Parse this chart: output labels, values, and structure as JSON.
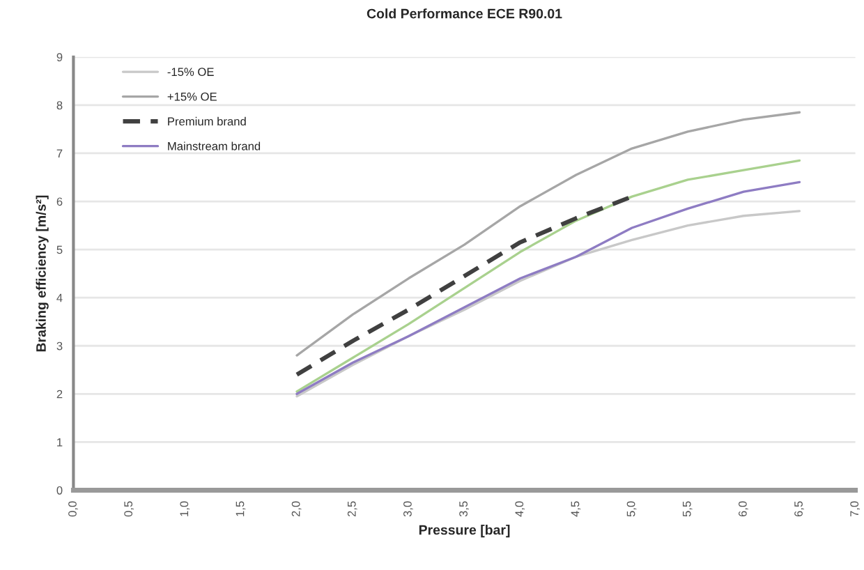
{
  "chart_data": {
    "type": "line",
    "title": "Cold Performance ECE R90.01",
    "xlabel": "Pressure [bar]",
    "ylabel": "Braking efficiency [m/s²]",
    "x": [
      2.0,
      2.5,
      3.0,
      3.5,
      4.0,
      4.5,
      5.0,
      5.5,
      6.0,
      6.5
    ],
    "series": [
      {
        "name": "-15% OE",
        "color": "#c8c8c8",
        "values": [
          1.95,
          2.6,
          3.2,
          3.75,
          4.35,
          4.85,
          5.2,
          5.5,
          5.7,
          5.8
        ]
      },
      {
        "name": "+15% OE",
        "color": "#a6a6a6",
        "values": [
          2.8,
          3.65,
          4.4,
          5.1,
          5.9,
          6.55,
          7.1,
          7.45,
          7.7,
          7.85
        ]
      },
      {
        "name": "Premium brand",
        "color": "#404040",
        "line_style": "dashed",
        "values": [
          2.4,
          3.1,
          3.75,
          4.45,
          5.15,
          5.65,
          6.1,
          null,
          null,
          null
        ]
      },
      {
        "color": "#a9d18e",
        "values": [
          2.05,
          2.75,
          3.45,
          4.2,
          4.95,
          5.6,
          6.1,
          6.45,
          6.65,
          6.85
        ]
      },
      {
        "name": "Mainstream brand",
        "color": "#8e7cc3",
        "values": [
          2.0,
          2.65,
          3.2,
          3.8,
          4.4,
          4.85,
          5.45,
          5.85,
          6.2,
          6.4
        ]
      }
    ],
    "xlim": [
      0,
      7
    ],
    "xticks": [
      {
        "value": 0,
        "label": "0,0"
      },
      {
        "value": 0.5,
        "label": "0,5"
      },
      {
        "value": 1,
        "label": "1,0"
      },
      {
        "value": 1.5,
        "label": "1,5"
      },
      {
        "value": 2,
        "label": "2,0"
      },
      {
        "value": 2.5,
        "label": "2,5"
      },
      {
        "value": 3,
        "label": "3,0"
      },
      {
        "value": 3.5,
        "label": "3,5"
      },
      {
        "value": 4,
        "label": "4,0"
      },
      {
        "value": 4.5,
        "label": "4,5"
      },
      {
        "value": 5,
        "label": "5,0"
      },
      {
        "value": 5.5,
        "label": "5,5"
      },
      {
        "value": 6,
        "label": "6,0"
      },
      {
        "value": 6.5,
        "label": "6,5"
      },
      {
        "value": 7,
        "label": "7,0"
      }
    ],
    "ylim": [
      0,
      9
    ],
    "yticks": [
      0,
      1,
      2,
      3,
      4,
      5,
      6,
      7,
      8,
      9
    ],
    "grid": "y",
    "legend": "top left",
    "marker": "none",
    "line_style": "solid"
  }
}
